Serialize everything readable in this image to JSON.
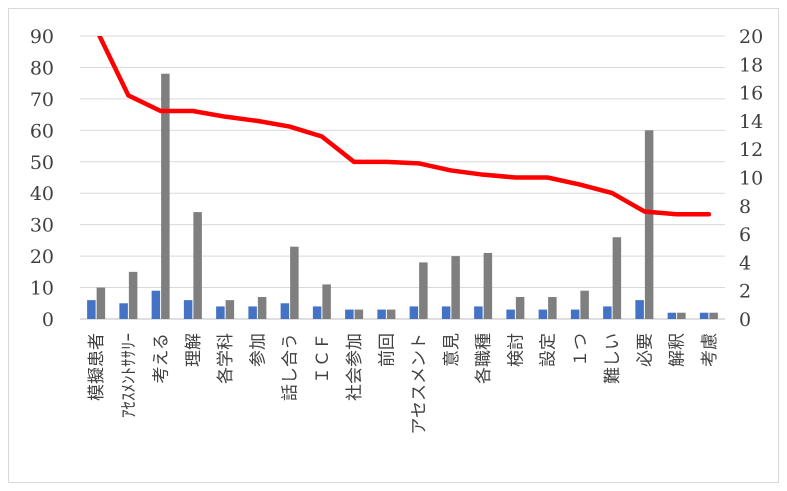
{
  "chart_data": {
    "type": "bar",
    "title": "",
    "xlabel": "",
    "ylabel": "",
    "y2label": "",
    "legend": "none",
    "grid": true,
    "categories": [
      "模擬患者",
      "ｱｾｽﾒﾝﾄｻｻﾘｰ",
      "考える",
      "理解",
      "各学科",
      "参加",
      "話し合う",
      "ＩＣＦ",
      "社会参加",
      "前回",
      "アセスメント",
      "意見",
      "各職種",
      "検討",
      "設定",
      "１つ",
      "難しい",
      "必要",
      "解釈",
      "考慮"
    ],
    "ylim": [
      0,
      90
    ],
    "yticks": [
      0,
      10,
      20,
      30,
      40,
      50,
      60,
      70,
      80,
      90
    ],
    "y2lim": [
      0,
      20
    ],
    "y2ticks": [
      0,
      2,
      4,
      6,
      8,
      10,
      12,
      14,
      16,
      18,
      20
    ],
    "series": [
      {
        "kind": "bar",
        "axis": "left",
        "color": "#4472C4",
        "values": [
          6,
          5,
          9,
          6,
          4,
          4,
          5,
          4,
          3,
          3,
          4,
          4,
          4,
          3,
          3,
          3,
          4,
          6,
          2,
          2
        ]
      },
      {
        "kind": "bar",
        "axis": "left",
        "color": "#7F7F7F",
        "values": [
          10,
          15,
          78,
          34,
          6,
          7,
          23,
          11,
          3,
          3,
          18,
          20,
          21,
          7,
          7,
          9,
          26,
          60,
          2,
          2
        ]
      },
      {
        "kind": "line",
        "axis": "right",
        "color": "#FF0000",
        "values": [
          20.5,
          15.8,
          14.7,
          14.7,
          14.3,
          14.0,
          13.6,
          12.9,
          11.1,
          11.1,
          11.0,
          10.5,
          10.2,
          10.0,
          10.0,
          9.5,
          8.9,
          7.6,
          7.4,
          7.4
        ]
      }
    ]
  }
}
